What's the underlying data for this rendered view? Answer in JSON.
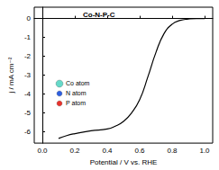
{
  "chart_data": {
    "type": "line",
    "x_label": "Potential / V vs. RHE",
    "y_label": "j / mA cm⁻²",
    "x": [
      0.1,
      0.15,
      0.2,
      0.3,
      0.4,
      0.45,
      0.5,
      0.55,
      0.6,
      0.65,
      0.7,
      0.75,
      0.8,
      0.85,
      0.9,
      0.95,
      1.0
    ],
    "values": [
      -6.35,
      -6.2,
      -6.1,
      -5.95,
      -5.85,
      -5.7,
      -5.45,
      -5.0,
      -4.3,
      -3.1,
      -1.8,
      -0.8,
      -0.3,
      -0.1,
      -0.03,
      0,
      0
    ],
    "color": "#000000",
    "xlim": [
      -0.05,
      1.05
    ],
    "xticks": [
      {
        "value": 0,
        "label": "0.0"
      },
      {
        "value": 0.2,
        "label": "0.2"
      },
      {
        "value": 0.4,
        "label": "0.4"
      },
      {
        "value": 0.6,
        "label": "0.6"
      },
      {
        "value": 0.8,
        "label": "0.8"
      },
      {
        "value": 1,
        "label": "1.0"
      }
    ],
    "ylim": [
      -6.6,
      0.6
    ],
    "yticks": [
      -6,
      -5,
      -4,
      -3,
      -2,
      -1,
      0
    ],
    "grid": false,
    "annotations": [
      {
        "text": "Co-N-P-C"
      },
      {
        "text": "Co atom",
        "color": "#66d9c9"
      },
      {
        "text": "N atom",
        "color": "#2e5fe0"
      },
      {
        "text": "P atom",
        "color": "#e8322c"
      }
    ]
  }
}
